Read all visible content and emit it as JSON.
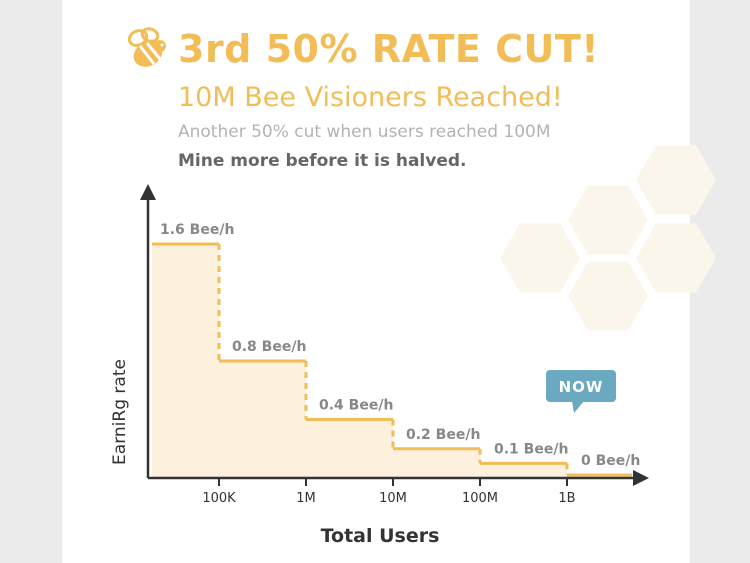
{
  "header": {
    "title": "3rd 50% RATE CUT!",
    "subtitle": "10M Bee Visioners Reached!",
    "note": "Another 50% cut when users reached 100M",
    "note_bold": "Mine more before it is halved."
  },
  "colors": {
    "accent": "#f2bd57",
    "fill": "#fdf0dc",
    "badge": "#6aa9bf",
    "axis": "#333333",
    "hex": "#fbf6ec"
  },
  "badge": {
    "label": "NOW",
    "category_index": 4
  },
  "chart_data": {
    "type": "area",
    "step": true,
    "xlabel": "Total Users",
    "ylabel": "EarniRg rate",
    "x_ticks": [
      "100K",
      "1M",
      "10M",
      "100M",
      "1B"
    ],
    "series": [
      {
        "segments": [
          {
            "from": "",
            "to": "100K",
            "value": 1.6,
            "label": "1.6 Bee/h"
          },
          {
            "from": "100K",
            "to": "1M",
            "value": 0.8,
            "label": "0.8 Bee/h"
          },
          {
            "from": "1M",
            "to": "10M",
            "value": 0.4,
            "label": "0.4 Bee/h"
          },
          {
            "from": "10M",
            "to": "100M",
            "value": 0.2,
            "label": "0.2 Bee/h"
          },
          {
            "from": "100M",
            "to": "1B",
            "value": 0.1,
            "label": "0.1 Bee/h"
          },
          {
            "from": "1B",
            "to": "",
            "value": 0,
            "label": "0 Bee/h"
          }
        ]
      }
    ],
    "ylim": [
      0,
      1.6
    ],
    "grid": false
  }
}
